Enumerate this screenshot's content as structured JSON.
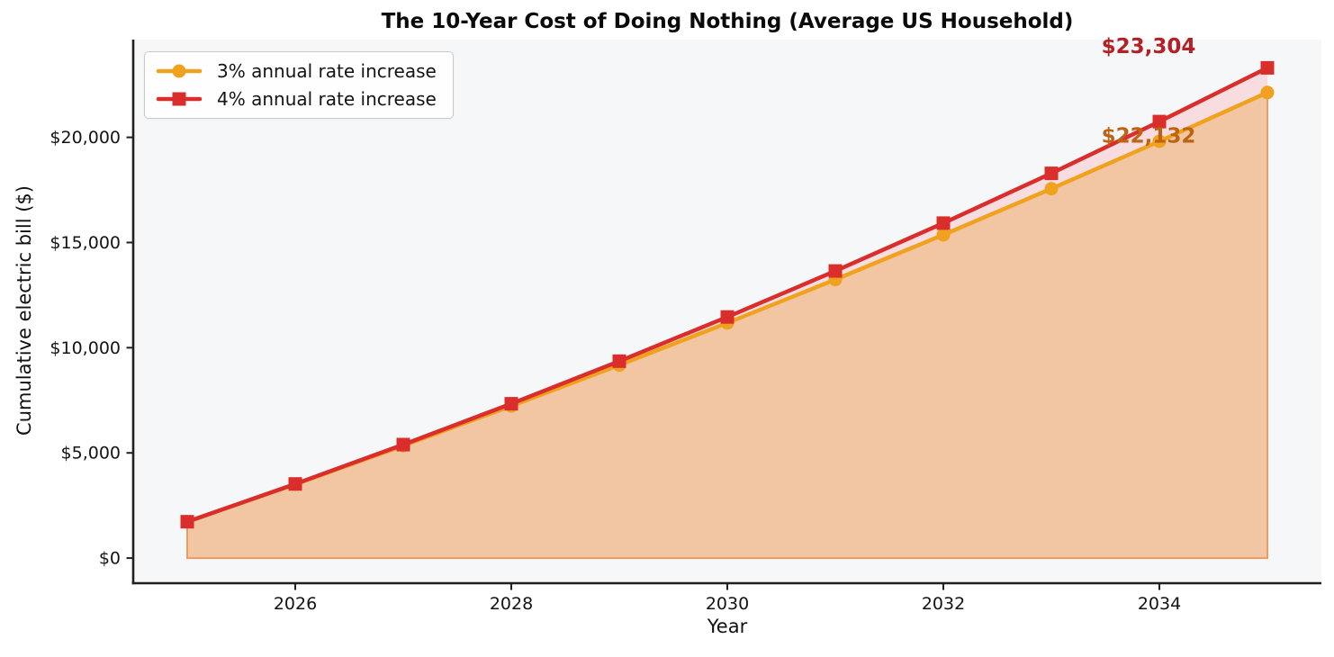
{
  "title": "The 10-Year Cost of Doing Nothing (Average US Household)",
  "colors": {
    "plot_background": "#f6f7f9",
    "spine": "#1f1f1f",
    "tick_label": "#141414",
    "figure_background": "#ffffff"
  },
  "chart_data": {
    "type": "line",
    "title": "The 10-Year Cost of Doing Nothing (Average US Household)",
    "xlabel": "Year",
    "ylabel": "Cumulative electric bill ($)",
    "grid": false,
    "legend_position": "upper-left",
    "xlim": [
      2024.5,
      2035.5
    ],
    "ylim": [
      -1194,
      24646
    ],
    "x": [
      2025,
      2026,
      2027,
      2028,
      2029,
      2030,
      2031,
      2032,
      2033,
      2034,
      2035
    ],
    "series": [
      {
        "name": "3% annual rate increase",
        "color": "#f0a11d",
        "marker": "circle",
        "fill_to_zero": true,
        "fill_color": "#f3c6a3",
        "fill_edge_color": "#ec9c5f",
        "values": [
          1728,
          3508,
          5341,
          7229,
          9174,
          11177,
          13241,
          15366,
          17555,
          19810,
          22132
        ]
      },
      {
        "name": "4% annual rate increase",
        "color": "#d92e2b",
        "marker": "square",
        "fill_to_series": 0,
        "fill_color": "#f7dde0",
        "values": [
          1728,
          3525,
          5394,
          7338,
          9360,
          11462,
          13648,
          15922,
          18287,
          20747,
          23304
        ]
      }
    ],
    "annotations": [
      {
        "text": "$23,304",
        "series": "4% annual rate increase",
        "x": 2033.9,
        "y": 24350,
        "color": "#b32025"
      },
      {
        "text": "$22,132",
        "series": "3% annual rate increase",
        "x": 2033.9,
        "y": 20100,
        "color": "#bd6414"
      }
    ],
    "x_ticks": [
      {
        "value": 2026,
        "label": "2026"
      },
      {
        "value": 2028,
        "label": "2028"
      },
      {
        "value": 2030,
        "label": "2030"
      },
      {
        "value": 2032,
        "label": "2032"
      },
      {
        "value": 2034,
        "label": "2034"
      }
    ],
    "y_ticks": [
      {
        "value": 0,
        "label": "$0"
      },
      {
        "value": 5000,
        "label": "$5,000"
      },
      {
        "value": 10000,
        "label": "$10,000"
      },
      {
        "value": 15000,
        "label": "$15,000"
      },
      {
        "value": 20000,
        "label": "$20,000"
      }
    ]
  }
}
